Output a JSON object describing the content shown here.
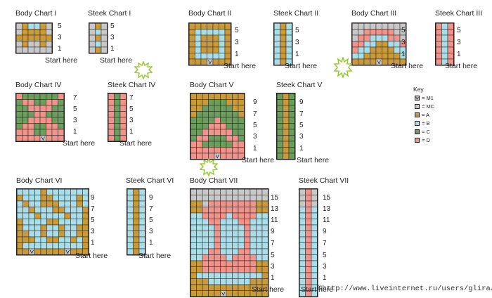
{
  "palette": {
    "G": "#c8c8c8",
    "A": "#c99a3a",
    "B": "#a9dde8",
    "C": "#6b9e5c",
    "D": "#f0948b",
    "M": "#c8c8c8"
  },
  "start_label": "Start here",
  "charts": [
    {
      "title": "Body Chart I",
      "row_labels": [
        "5",
        "3",
        "1"
      ],
      "rows": [
        "GABBAG",
        "GAAAAG",
        "AAAAAA",
        "GAGGAG",
        "GGGGGG"
      ]
    },
    {
      "title": "Steek Chart I",
      "row_labels": [
        "5",
        "3",
        "1"
      ],
      "rows": [
        "GAG",
        "GBG",
        "GAG",
        "GBG",
        "GAG"
      ]
    },
    {
      "title": "Body Chart II",
      "row_labels": [
        "5",
        "3",
        "1"
      ],
      "rows": [
        "AAAAAAA",
        "ABBBBBA",
        "ABAAABA",
        "ABAAABA",
        "ABAAABA",
        "ABBBBBA",
        "AAAMAAA"
      ]
    },
    {
      "title": "Steek Chart II",
      "row_labels": [
        "5",
        "3",
        "1"
      ],
      "rows": [
        "BAB",
        "BAB",
        "BAB",
        "BAB",
        "BAB",
        "BAB",
        "BAB"
      ]
    },
    {
      "title": "Body Chart III",
      "row_labels": [
        "5",
        "3",
        "1"
      ],
      "rows": [
        "GGGGGGGGG",
        "GGDDDDDGG",
        "GDDBBBDDG",
        "DDBBAABBD",
        "DBBAAAABB",
        "BBAAAAAAB",
        "AAAAMAAAA"
      ]
    },
    {
      "title": "Steek Chart III",
      "row_labels": [
        "5",
        "3",
        "1"
      ],
      "rows": [
        "DBD",
        "DBD",
        "DBD",
        "DBD",
        "DBD",
        "DBD",
        "DBD"
      ]
    },
    {
      "title": "Body Chart IV",
      "row_labels": [
        "7",
        "5",
        "3",
        "1"
      ],
      "rows": [
        "DCCCCCCD",
        "CDDCCDDC",
        "CCDDDDCC",
        "CCCDDCCC",
        "CCDDDDCC",
        "CDDCCDDC",
        "DDDCCDDD",
        "DDDDMDDD"
      ]
    },
    {
      "title": "Steek Chart IV",
      "row_labels": [
        "7",
        "5",
        "3",
        "1"
      ],
      "rows": [
        "DCD",
        "DCD",
        "DCD",
        "DCD",
        "DCD",
        "DCD",
        "DCD",
        "DCD"
      ]
    },
    {
      "title": "Body Chart V",
      "row_labels": [
        "9",
        "7",
        "5",
        "3",
        "1"
      ],
      "rows": [
        "AAAAAAAAA",
        "AAACCCAAA",
        "AACCCCCAA",
        "ACCCCCCCA",
        "CCCCDCCCC",
        "CCCDDDCCC",
        "CCDDDDDCC",
        "CDDCCCDDC",
        "DDCCCCCDD",
        "DDDDDDDDD",
        "DDDDMDDDD"
      ]
    },
    {
      "title": "Steek Chart V",
      "row_labels": [
        "9",
        "7",
        "5",
        "3",
        "1"
      ],
      "rows": [
        "CAC",
        "CAC",
        "CAC",
        "CAC",
        "CAC",
        "CAC",
        "CAC",
        "CAC",
        "CAC",
        "CAC",
        "CAC"
      ]
    },
    {
      "title": "Body Chart VI",
      "row_labels": [
        "9",
        "7",
        "5",
        "3",
        "1"
      ],
      "rows": [
        "BBBBABBBBBBB",
        "ABBBAABBBBAB",
        "BABBAAABBBAB",
        "BBABBBAABBBA",
        "BBBABBBBABBA",
        "ABBBBAABBBBA",
        "ABBBABBABBAA",
        "AABBABBABBAA",
        "AAABBAABBABA",
        "ABBBBBBBBBBA",
        "AAMAAAAAMAAA"
      ]
    },
    {
      "title": "Steek Chart VI",
      "row_labels": [
        "9",
        "7",
        "5",
        "3",
        "1"
      ],
      "rows": [
        "BAB",
        "BAB",
        "BAB",
        "BAB",
        "BAB",
        "BAB",
        "BAB",
        "BAB",
        "BAB",
        "BAB",
        "BAB"
      ]
    },
    {
      "title": "Body Chart VII",
      "row_labels": [
        "15",
        "13",
        "11",
        "9",
        "7",
        "5",
        "3",
        "1"
      ],
      "rows": [
        "GGGGGGGGGGGGG",
        "GGGGGGGGGGGGG",
        "AAGDDDDDDDDAA",
        "AADDDDDDDDDAA",
        "BBDDDDBDDDDBB",
        "BBBDDBBBDDBBB",
        "BBBBDBBBBDBBB",
        "BBBBDBBBBDBBB",
        "BBBBDBBBBDBBB",
        "BBBBDBBBBDBBB",
        "BBBDDBBBDDBBB",
        "BBDDDDBDDDDBB",
        "AADDDDDDDDDAA",
        "AADDDDDDDDDAA",
        "ABBBBBBBBBBBA",
        "AAABBBBBBBAAA",
        "AAAAAAAAAAAAA",
        "AAAAAMAAAAAAA"
      ]
    },
    {
      "title": "Steek Chart VII",
      "row_labels": [
        "15",
        "13",
        "11",
        "9",
        "7",
        "5",
        "3",
        "1"
      ],
      "rows": [
        "GDG",
        "GDG",
        "GDG",
        "BDB",
        "BDB",
        "BDB",
        "BDB",
        "BDB",
        "BDB",
        "BDB",
        "BDB",
        "BDB",
        "BDB",
        "BDB",
        "BDB",
        "BDB",
        "BDB",
        "BDB"
      ]
    }
  ],
  "key": {
    "title": "Key",
    "items": [
      {
        "code": "M",
        "label": "= M1"
      },
      {
        "code": "G",
        "label": "= MC"
      },
      {
        "code": "A",
        "label": "= A"
      },
      {
        "code": "B",
        "label": "= B"
      },
      {
        "code": "C",
        "label": "= C"
      },
      {
        "code": "D",
        "label": "= D"
      }
    ]
  },
  "watermark": "©http://www.liveinternet.ru/users/glira/"
}
